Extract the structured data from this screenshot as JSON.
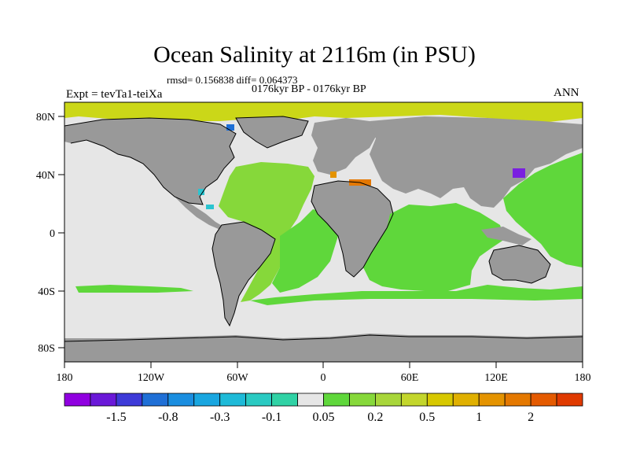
{
  "header": {
    "title": "Ocean Salinity at 2116m (in PSU)",
    "stats": "rmsd= 0.156838 diff= 0.064373",
    "subtitle": "0176kyr BP - 0176kyr BP",
    "left_label": "Expt = tevTa1-teiXa",
    "right_label": "ANN"
  },
  "map": {
    "lon_ticks": [
      "180",
      "120W",
      "60W",
      "0",
      "60E",
      "120E",
      "180"
    ],
    "lat_ticks": [
      "80N",
      "40N",
      "0",
      "40S",
      "80S"
    ],
    "colors": {
      "land": "#999999",
      "near_zero": "#e6e6e6",
      "green": "#5fd73b",
      "yellow_green": "#9ed33a",
      "yellow": "#cbd718",
      "blue": "#1f6fd6",
      "cyan": "#2bc4d0",
      "purple": "#7a1fe0",
      "orange": "#e47800"
    }
  },
  "colorbar": {
    "labels": [
      "-1.5",
      "-0.8",
      "-0.3",
      "-0.1",
      "0.05",
      "0.2",
      "0.5",
      "1",
      "2"
    ],
    "colors": [
      "#9000e0",
      "#6a18d8",
      "#3d3ad8",
      "#1f6fd6",
      "#1a8ee0",
      "#19a6e0",
      "#1ebad8",
      "#2acac2",
      "#30d2a5",
      "#e6e6e6",
      "#5fd73b",
      "#86d83a",
      "#a8d63a",
      "#c3d62c",
      "#d7c800",
      "#e0b000",
      "#e49300",
      "#e47800",
      "#e45a00",
      "#e03a00"
    ]
  }
}
